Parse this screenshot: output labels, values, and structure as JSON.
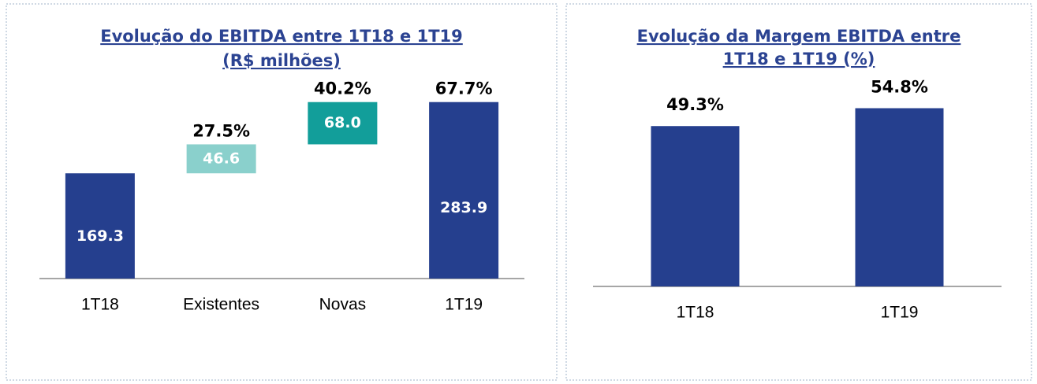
{
  "chart_data": [
    {
      "type": "waterfall",
      "title": [
        "Evolução do EBITDA entre 1T18 e 1T19",
        "(R$ milhões)"
      ],
      "categories": [
        "1T18",
        "Existentes",
        "Novas",
        "1T19"
      ],
      "values": [
        169.3,
        46.6,
        68.0,
        283.9
      ],
      "value_labels": [
        "169.3",
        "46.6",
        "68.0",
        "283.9"
      ],
      "annotations": [
        null,
        "27.5%",
        "40.2%",
        "67.7%"
      ],
      "totals": [
        true,
        false,
        false,
        true
      ],
      "colors": [
        "#253f8e",
        "#8ad0cc",
        "#129e9a",
        "#253f8e"
      ],
      "ylim": [
        0,
        300
      ]
    },
    {
      "type": "bar",
      "title": [
        "Evolução da Margem EBITDA entre",
        "1T18 e 1T19 (%)"
      ],
      "categories": [
        "1T18",
        "1T19"
      ],
      "values": [
        49.3,
        54.8
      ],
      "value_labels": [
        "49.3%",
        "54.8%"
      ],
      "color": "#253f8e",
      "ylim": [
        0,
        60
      ]
    }
  ]
}
